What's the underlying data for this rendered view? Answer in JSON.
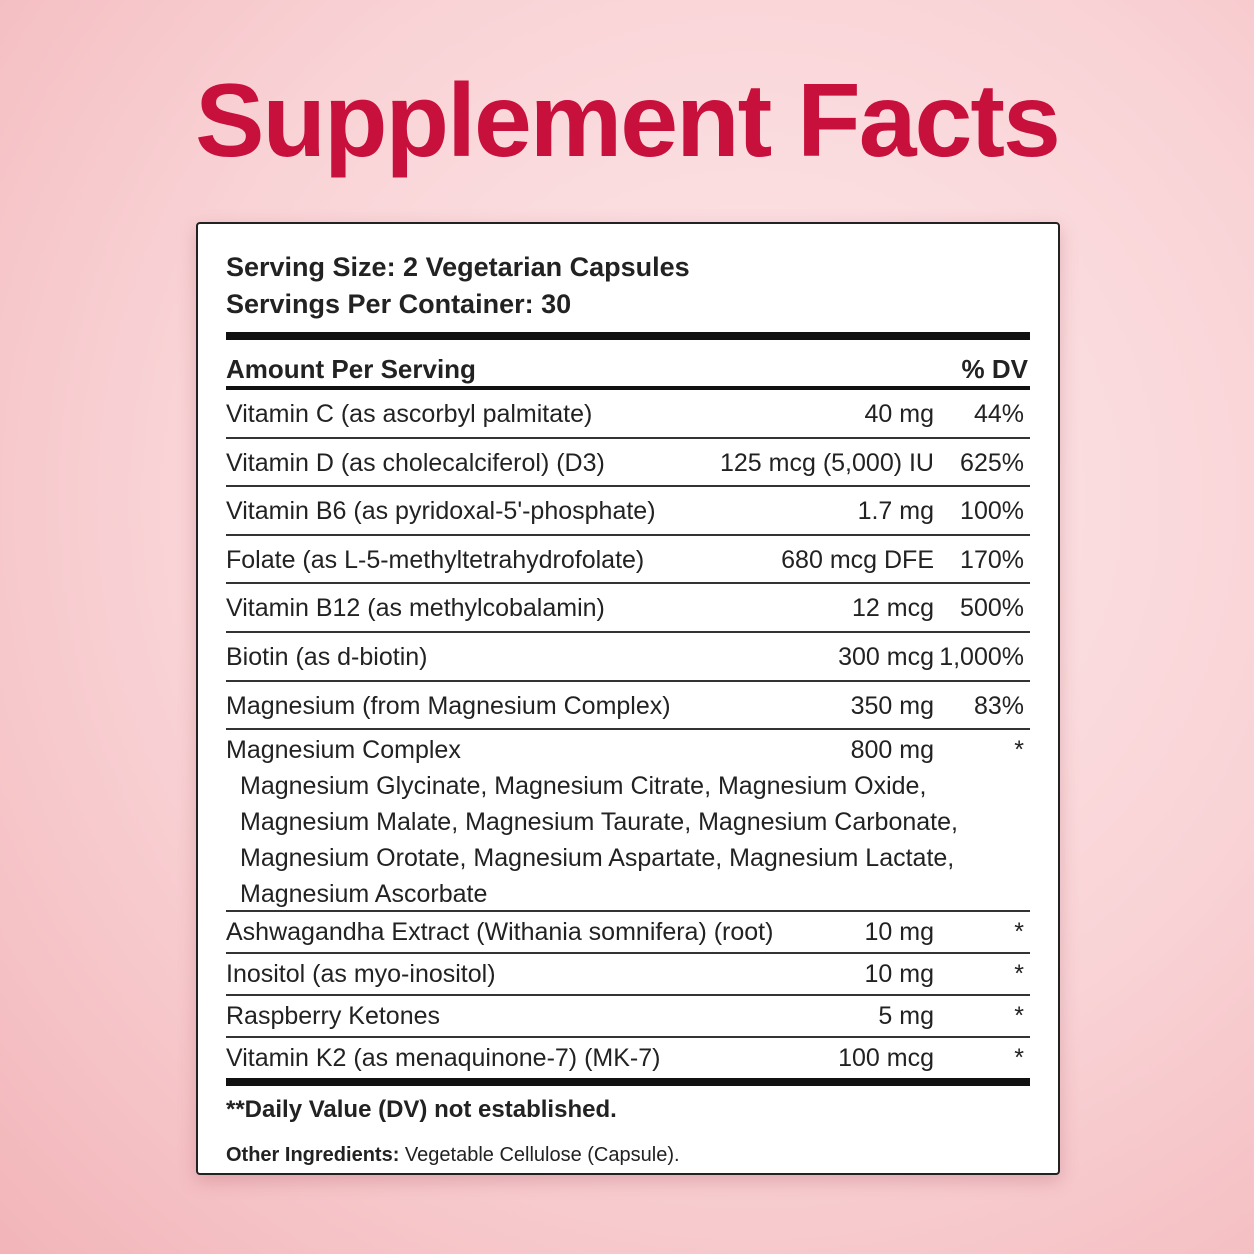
{
  "title": "Supplement Facts",
  "serving": {
    "size": "Serving Size: 2 Vegetarian Capsules",
    "per_container": "Servings Per Container: 30"
  },
  "table": {
    "header": [
      "Amount Per Serving",
      "% DV"
    ],
    "rows": [
      {
        "name": "Vitamin C (as ascorbyl palmitate)",
        "amount": "40 mg",
        "dv": "44%"
      },
      {
        "name": "Vitamin D (as cholecalciferol) (D3)",
        "amount": "125 mcg (5,000) IU",
        "dv": "625%"
      },
      {
        "name": "Vitamin B6 (as pyridoxal-5'-phosphate)",
        "amount": "1.7 mg",
        "dv": "100%"
      },
      {
        "name": "Folate (as L-5-methyltetrahydrofolate)",
        "amount": "680 mcg DFE",
        "dv": "170%"
      },
      {
        "name": "Vitamin B12 (as methylcobalamin)",
        "amount": "12 mcg",
        "dv": "500%"
      },
      {
        "name": "Biotin (as d-biotin)",
        "amount": "300 mcg",
        "dv": "1,000%"
      },
      {
        "name": "Magnesium (from Magnesium Complex)",
        "amount": "350 mg",
        "dv": "83%"
      },
      {
        "name": "Magnesium Complex",
        "amount": "800 mg",
        "dv": "*",
        "sub": [
          "Magnesium Glycinate, Magnesium Citrate, Magnesium Oxide,",
          "Magnesium Malate, Magnesium Taurate, Magnesium Carbonate,",
          "Magnesium Orotate, Magnesium Aspartate, Magnesium Lactate,",
          "Magnesium Ascorbate"
        ]
      },
      {
        "name": "Ashwagandha Extract (Withania somnifera) (root)",
        "amount": "10 mg",
        "dv": "*"
      },
      {
        "name": "Inositol (as myo-inositol)",
        "amount": "10 mg",
        "dv": "*"
      },
      {
        "name": "Raspberry Ketones",
        "amount": "5 mg",
        "dv": "*"
      },
      {
        "name": "Vitamin K2 (as menaquinone-7) (MK-7)",
        "amount": "100 mcg",
        "dv": "*"
      }
    ]
  },
  "footnote": "**Daily Value (DV) not established.",
  "other": {
    "label": "Other Ingredients:",
    "text": "Vegetable Cellulose (Capsule)."
  }
}
